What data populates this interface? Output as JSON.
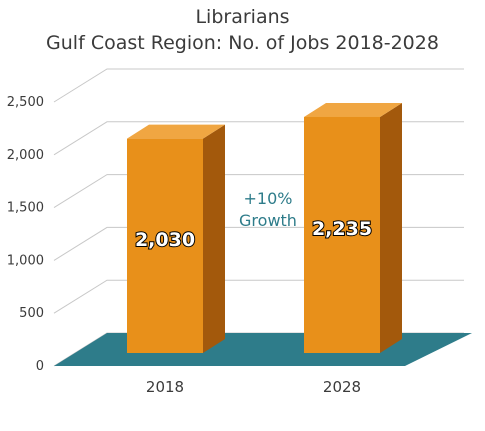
{
  "chart_data": {
    "type": "bar",
    "title": "Librarians",
    "subtitle": "Gulf Coast Region: No. of Jobs 2018-2028",
    "categories": [
      "2018",
      "2028"
    ],
    "values": [
      2030,
      2235
    ],
    "value_labels": [
      "2,030",
      "2,235"
    ],
    "yticks": [
      "0",
      "500",
      "1,000",
      "1,500",
      "2,000",
      "2,500"
    ],
    "ylim": [
      0,
      2500
    ],
    "annotation": [
      "+10%",
      "Growth"
    ],
    "grid": true,
    "colors": {
      "bar_front": "#e8901a",
      "bar_side": "#a3590c",
      "bar_top": "#f0a642",
      "floor": "#2e7c8a",
      "annotation": "#2e7c8a",
      "grid": "#c8c8c8"
    }
  }
}
